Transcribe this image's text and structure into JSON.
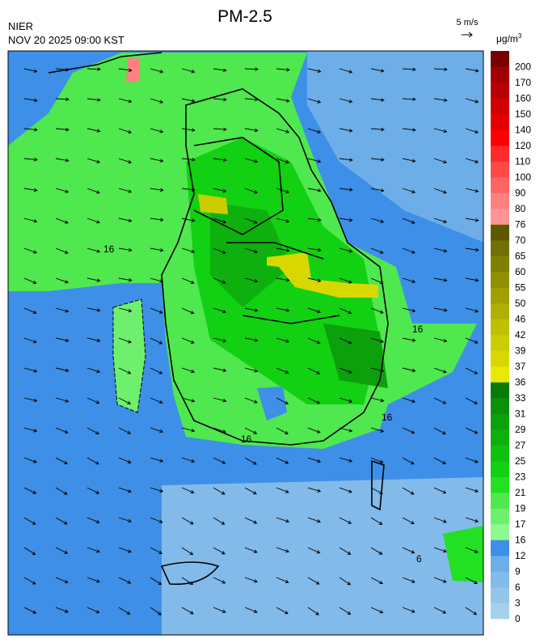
{
  "header": {
    "title": "PM-2.5",
    "agency": "NIER",
    "timestamp": "NOV 20 2025 09:00 KST"
  },
  "wind_scale": {
    "label": "5 m/s"
  },
  "colorbar": {
    "unit": {
      "base": "μg/m",
      "sup": "3"
    },
    "levels": [
      0,
      3,
      6,
      9,
      12,
      16,
      17,
      19,
      21,
      23,
      25,
      27,
      29,
      31,
      33,
      36,
      37,
      39,
      42,
      46,
      50,
      55,
      60,
      65,
      70,
      76,
      80,
      90,
      100,
      110,
      120,
      140,
      150,
      160,
      170,
      200
    ],
    "colors": [
      "#a6d1ee",
      "#94c6ec",
      "#82baea",
      "#6eaee8",
      "#3e8fe8",
      "#90f890",
      "#6ef06e",
      "#4fe84f",
      "#22e022",
      "#12d012",
      "#10c010",
      "#0eb00e",
      "#0ca00c",
      "#0a900a",
      "#087a08",
      "#e8e800",
      "#d8d800",
      "#cccc00",
      "#c0c000",
      "#b0b000",
      "#a0a000",
      "#909000",
      "#808000",
      "#727000",
      "#605800",
      "#ff9494",
      "#ff8080",
      "#ff6464",
      "#ff4848",
      "#ff2a2a",
      "#ff0000",
      "#e40000",
      "#d00000",
      "#b80000",
      "#a00000",
      "#780000"
    ]
  },
  "map": {
    "contour_labels": [
      "16",
      "16",
      "16",
      "16",
      "6"
    ]
  }
}
